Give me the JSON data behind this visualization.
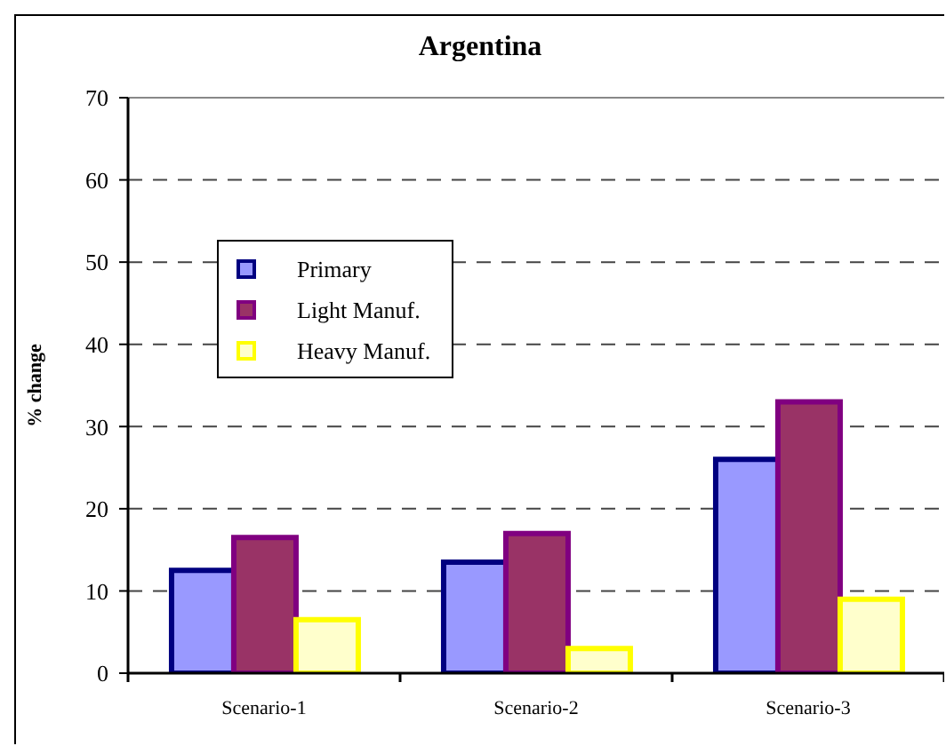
{
  "chart_data": {
    "type": "bar",
    "title": "Argentina",
    "ylabel": "% change",
    "categories": [
      "Scenario-1",
      "Scenario-2",
      "Scenario-3"
    ],
    "series": [
      {
        "name": "Primary",
        "color": "#9999ff",
        "values": [
          12.5,
          13.5,
          26
        ]
      },
      {
        "name": "Light Manuf.",
        "color": "#993366",
        "values": [
          16.5,
          17,
          33
        ]
      },
      {
        "name": "Heavy Manuf.",
        "color": "#ffffcc",
        "values": [
          6.5,
          3,
          9
        ]
      }
    ],
    "ylim": [
      0,
      70
    ],
    "yticks": [
      0,
      10,
      20,
      30,
      40,
      50,
      60,
      70
    ],
    "grid": "y",
    "legend": "top left"
  }
}
